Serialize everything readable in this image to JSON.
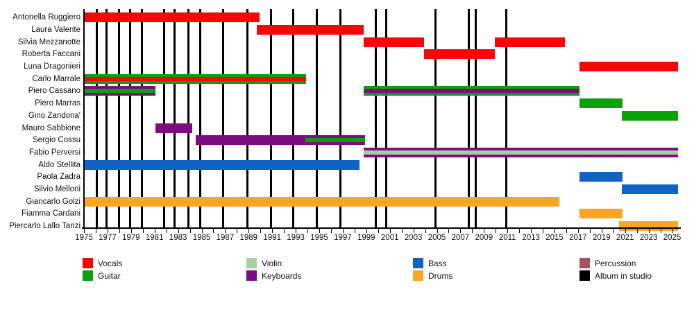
{
  "chart_data": {
    "type": "bar",
    "subtype": "gantt-member-timeline",
    "title": "",
    "xlabel": "",
    "ylabel": "",
    "grid": false,
    "legend_position": "bottom",
    "x_axis": {
      "min": 1975,
      "max": 2025.5,
      "minor_tick_step": 1,
      "tick_labels": [
        "1975",
        "1977",
        "1979",
        "1981",
        "1983",
        "1985",
        "1987",
        "1989",
        "1991",
        "1993",
        "1995",
        "1997",
        "1999",
        "2001",
        "2003",
        "2005",
        "2007",
        "2009",
        "2011",
        "2013",
        "2015",
        "2017",
        "2019",
        "2021",
        "2023",
        "2025"
      ]
    },
    "role_colors": {
      "vocals": "#f80505",
      "guitar": "#0aa10a",
      "violin": "#a8cfa4",
      "keyboards": "#7d0c80",
      "bass": "#1063c4",
      "drums": "#f9a625",
      "percussion": "#a5525a",
      "album": "#000000"
    },
    "members": [
      {
        "name": "Antonella Ruggiero",
        "bars": [
          {
            "start": 1975.0,
            "end": 1989.9,
            "role": "vocals"
          }
        ]
      },
      {
        "name": "Laura Valente",
        "bars": [
          {
            "start": 1989.7,
            "end": 1998.8,
            "role": "vocals"
          }
        ]
      },
      {
        "name": "Silvia Mezzanotte",
        "bars": [
          {
            "start": 1998.8,
            "end": 2003.9,
            "role": "vocals"
          },
          {
            "start": 2009.9,
            "end": 2015.9,
            "role": "vocals"
          }
        ]
      },
      {
        "name": "Roberta Faccani",
        "bars": [
          {
            "start": 2003.9,
            "end": 2009.9,
            "role": "vocals"
          }
        ]
      },
      {
        "name": "Luna Dragonieri",
        "bars": [
          {
            "start": 2017.1,
            "end": 2025.5,
            "role": "vocals"
          }
        ]
      },
      {
        "name": "Carlo Marrale",
        "bars": [
          {
            "start": 1975.0,
            "end": 1993.9,
            "role": "guitar",
            "stripe_role": "vocals"
          }
        ]
      },
      {
        "name": "Piero Cassano",
        "bars": [
          {
            "start": 1975.0,
            "end": 1981.1,
            "role": "keyboards",
            "stripe_role": "guitar"
          },
          {
            "start": 1998.8,
            "end": 2017.1,
            "role": "guitar",
            "stripe_role": "keyboards"
          }
        ]
      },
      {
        "name": "Piero Marras",
        "bars": [
          {
            "start": 2017.1,
            "end": 2020.8,
            "role": "guitar"
          }
        ]
      },
      {
        "name": "Gino Zandona'",
        "bars": [
          {
            "start": 2020.7,
            "end": 2025.5,
            "role": "guitar"
          }
        ]
      },
      {
        "name": "Mauro Sabbione",
        "bars": [
          {
            "start": 1981.1,
            "end": 1984.2,
            "role": "keyboards"
          }
        ]
      },
      {
        "name": "Sergio Cossu",
        "bars": [
          {
            "start": 1984.5,
            "end": 1998.9,
            "role": "keyboards",
            "stripe_role": "guitar",
            "stripe_start": 1993.8,
            "stripe_end": 1998.9
          }
        ]
      },
      {
        "name": "Fabio Perversi",
        "bars": [
          {
            "start": 1998.8,
            "end": 2025.5,
            "role": "keyboards",
            "stripe_role": "violin"
          }
        ]
      },
      {
        "name": "Aldo Stellita",
        "bars": [
          {
            "start": 1975.0,
            "end": 1998.4,
            "role": "bass"
          }
        ]
      },
      {
        "name": "Paola Zadra",
        "bars": [
          {
            "start": 2017.1,
            "end": 2020.8,
            "role": "bass"
          }
        ]
      },
      {
        "name": "Silvio Melloni",
        "bars": [
          {
            "start": 2020.7,
            "end": 2025.5,
            "role": "bass"
          }
        ]
      },
      {
        "name": "Giancarlo Golzi",
        "bars": [
          {
            "start": 1975.0,
            "end": 2015.4,
            "role": "drums"
          }
        ]
      },
      {
        "name": "Fiamma Cardani",
        "bars": [
          {
            "start": 2017.1,
            "end": 2020.8,
            "role": "drums"
          }
        ]
      },
      {
        "name": "Piercarlo Lallo Tanzi",
        "bars": [
          {
            "start": 2020.5,
            "end": 2025.5,
            "role": "drums"
          }
        ]
      }
    ],
    "album_in_studio_years": [
      1976.1,
      1976.9,
      1978.0,
      1978.9,
      1979.9,
      1981.8,
      1982.7,
      1983.9,
      1984.9,
      1986.8,
      1988.9,
      1990.9,
      1992.8,
      1994.8,
      1996.8,
      1999.8,
      2000.7,
      2004.9,
      2007.7,
      2008.3,
      2010.9
    ],
    "legend": [
      {
        "label": "Vocals",
        "role": "vocals"
      },
      {
        "label": "Guitar",
        "role": "guitar"
      },
      {
        "label": "Violin",
        "role": "violin"
      },
      {
        "label": "Keyboards",
        "role": "keyboards"
      },
      {
        "label": "Bass",
        "role": "bass"
      },
      {
        "label": "Drums",
        "role": "drums"
      },
      {
        "label": "Percussion",
        "role": "percussion"
      },
      {
        "label": "Album in studio",
        "role": "album"
      }
    ]
  }
}
